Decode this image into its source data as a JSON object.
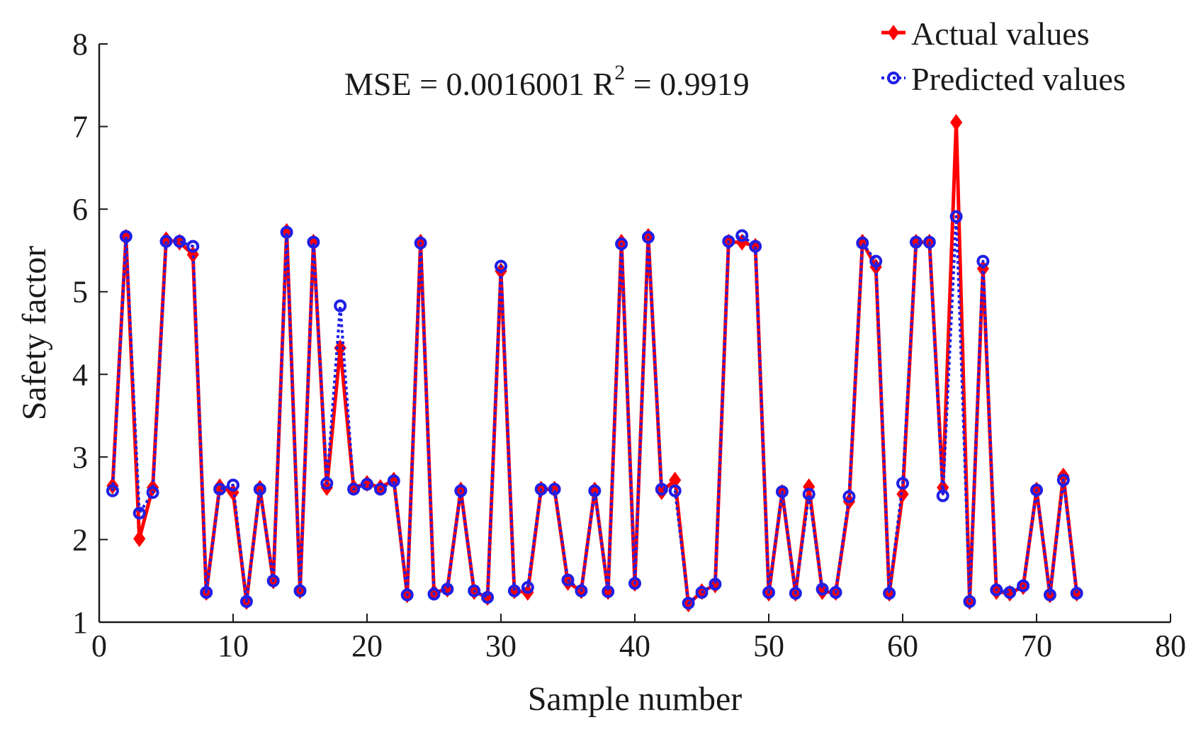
{
  "chart_data": {
    "type": "line",
    "title": "",
    "xlabel": "Sample number",
    "ylabel": "Safety factor",
    "xlim": [
      0,
      80
    ],
    "ylim": [
      1,
      8
    ],
    "xticks": [
      "0",
      "10",
      "20",
      "30",
      "40",
      "50",
      "60",
      "70",
      "80"
    ],
    "yticks": [
      "1",
      "2",
      "3",
      "4",
      "5",
      "6",
      "7",
      "8"
    ],
    "grid": false,
    "legend_position": "top-right",
    "annotation": {
      "mse_text": "MSE = 0.0016001 R",
      "superscript": "2",
      "r2_text": " = 0.9919"
    },
    "x": [
      1,
      2,
      3,
      4,
      5,
      6,
      7,
      8,
      9,
      10,
      11,
      12,
      13,
      14,
      15,
      16,
      17,
      18,
      19,
      20,
      21,
      22,
      23,
      24,
      25,
      26,
      27,
      28,
      29,
      30,
      31,
      32,
      33,
      34,
      35,
      36,
      37,
      38,
      39,
      40,
      41,
      42,
      43,
      44,
      45,
      46,
      47,
      48,
      49,
      50,
      51,
      52,
      53,
      54,
      55,
      56,
      57,
      58,
      59,
      60,
      61,
      62,
      63,
      64,
      65,
      66,
      67,
      68,
      69,
      70,
      71,
      72,
      73
    ],
    "series": [
      {
        "name": "Actual values",
        "color": "#ff0000",
        "marker": "diamond",
        "line": "solid",
        "values": [
          2.65,
          5.66,
          2.01,
          2.63,
          5.63,
          5.6,
          5.45,
          1.36,
          2.64,
          2.57,
          1.25,
          2.62,
          1.5,
          5.73,
          1.38,
          5.6,
          2.63,
          4.32,
          2.63,
          2.68,
          2.63,
          2.72,
          1.33,
          5.6,
          1.36,
          1.4,
          2.6,
          1.37,
          1.3,
          5.25,
          1.38,
          1.36,
          2.61,
          2.61,
          1.48,
          1.38,
          2.6,
          1.37,
          5.6,
          1.47,
          5.67,
          2.58,
          2.72,
          1.22,
          1.37,
          1.45,
          5.6,
          5.6,
          5.55,
          1.35,
          2.57,
          1.35,
          2.64,
          1.37,
          1.36,
          2.46,
          5.6,
          5.3,
          1.35,
          2.55,
          5.6,
          5.6,
          2.63,
          7.05,
          1.25,
          5.28,
          1.37,
          1.35,
          1.43,
          2.6,
          1.33,
          2.77,
          1.35
        ]
      },
      {
        "name": "Predicted values",
        "color": "#1f1fe6",
        "marker": "circle",
        "line": "dotted",
        "values": [
          2.59,
          5.67,
          2.32,
          2.57,
          5.61,
          5.61,
          5.55,
          1.36,
          2.61,
          2.66,
          1.25,
          2.61,
          1.5,
          5.72,
          1.38,
          5.6,
          2.68,
          4.83,
          2.61,
          2.67,
          2.61,
          2.71,
          1.33,
          5.59,
          1.34,
          1.4,
          2.59,
          1.38,
          1.3,
          5.31,
          1.38,
          1.42,
          2.61,
          2.61,
          1.51,
          1.38,
          2.59,
          1.37,
          5.58,
          1.47,
          5.66,
          2.61,
          2.59,
          1.23,
          1.36,
          1.46,
          5.61,
          5.68,
          5.55,
          1.36,
          2.58,
          1.35,
          2.55,
          1.4,
          1.36,
          2.52,
          5.59,
          5.37,
          1.35,
          2.68,
          5.6,
          5.6,
          2.53,
          5.91,
          1.25,
          5.37,
          1.39,
          1.36,
          1.44,
          2.6,
          1.33,
          2.72,
          1.35
        ]
      }
    ]
  }
}
